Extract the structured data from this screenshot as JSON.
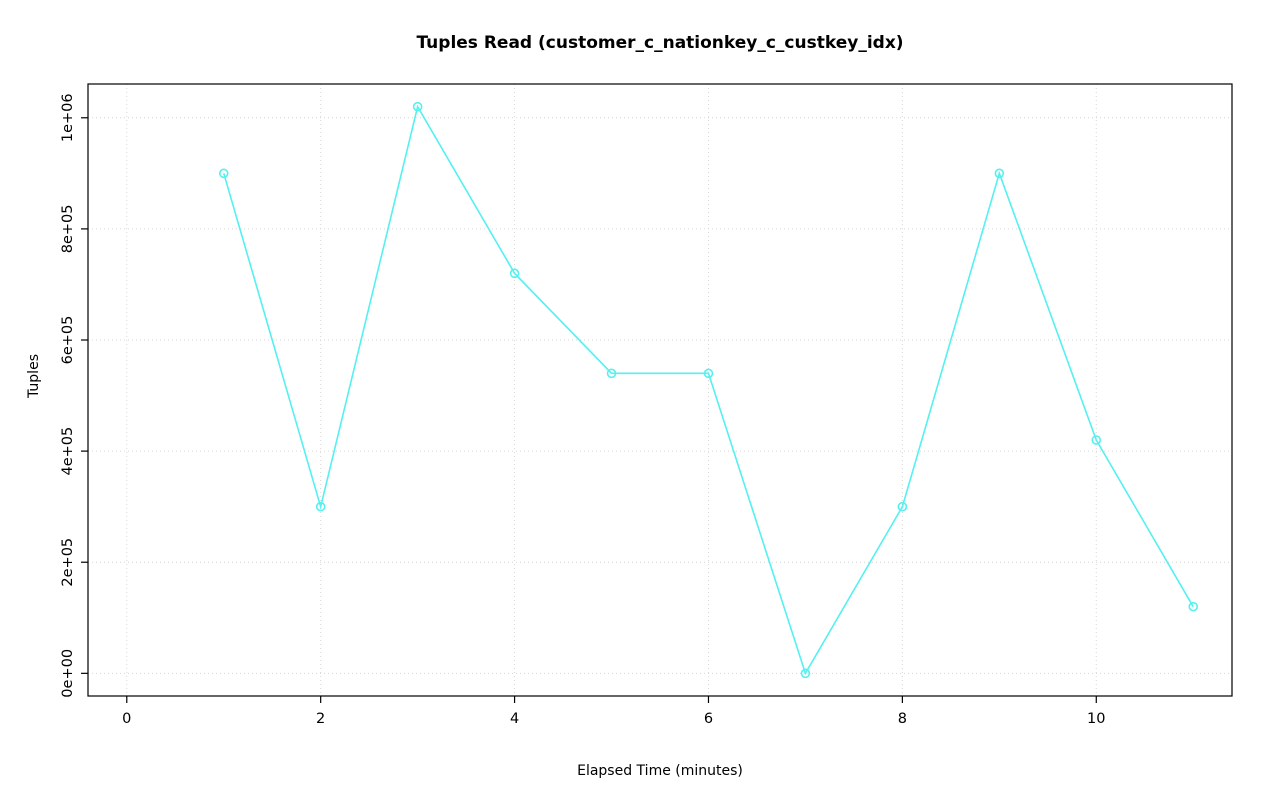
{
  "chart_data": {
    "type": "line",
    "title": "Tuples Read (customer_c_nationkey_c_custkey_idx)",
    "xlabel": "Elapsed Time (minutes)",
    "ylabel": "Tuples",
    "x": [
      1,
      2,
      3,
      4,
      5,
      6,
      7,
      8,
      9,
      10,
      11
    ],
    "y": [
      900000,
      300000,
      1020000,
      720000,
      540000,
      540000,
      0,
      300000,
      900000,
      420000,
      120000
    ],
    "xlim": [
      -0.4,
      11.4
    ],
    "ylim": [
      -40800,
      1060800
    ],
    "x_ticks": [
      0,
      2,
      4,
      6,
      8,
      10
    ],
    "x_tick_labels": [
      "0",
      "2",
      "4",
      "6",
      "8",
      "10"
    ],
    "y_ticks": [
      0,
      200000,
      400000,
      600000,
      800000,
      1000000
    ],
    "y_tick_labels": [
      "0e+00",
      "2e+05",
      "4e+05",
      "6e+05",
      "8e+05",
      "1e+06"
    ],
    "grid": true,
    "legend": "none",
    "line_color": "#55f0f0",
    "marker": "open-circle",
    "marker_radius": 4,
    "grid_color": "#d6d6d6",
    "axis_color": "#000000",
    "text_color": "#000000"
  }
}
